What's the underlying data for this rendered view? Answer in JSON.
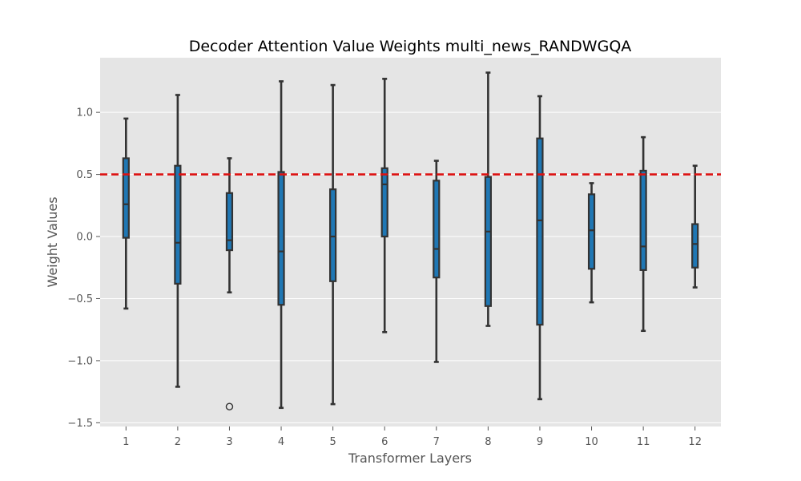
{
  "chart_data": {
    "type": "box",
    "title": "Decoder Attention Value Weights multi_news_RANDWGQA",
    "xlabel": "Transformer Layers",
    "ylabel": "Weight Values",
    "categories": [
      "1",
      "2",
      "3",
      "4",
      "5",
      "6",
      "7",
      "8",
      "9",
      "10",
      "11",
      "12"
    ],
    "ylim": [
      -1.53,
      1.44
    ],
    "yticks": [
      -1.5,
      -1.0,
      -0.5,
      0.0,
      0.5,
      1.0
    ],
    "ytick_labels": [
      "−1.5",
      "−1.0",
      "−0.5",
      "0.0",
      "0.5",
      "1.0"
    ],
    "grid": true,
    "background": "#e5e5e5",
    "box_color": "#1f77b4",
    "edge_color": "#333333",
    "reference_line": {
      "y": 0.5,
      "color": "#dd1111",
      "style": "dashed"
    },
    "boxes": [
      {
        "layer": "1",
        "whislo": -0.58,
        "q1": -0.01,
        "med": 0.26,
        "q3": 0.63,
        "whishi": 0.95,
        "fliers": []
      },
      {
        "layer": "2",
        "whislo": -1.21,
        "q1": -0.38,
        "med": -0.05,
        "q3": 0.57,
        "whishi": 1.14,
        "fliers": []
      },
      {
        "layer": "3",
        "whislo": -0.45,
        "q1": -0.11,
        "med": -0.03,
        "q3": 0.35,
        "whishi": 0.63,
        "fliers": [
          -1.37
        ]
      },
      {
        "layer": "4",
        "whislo": -1.38,
        "q1": -0.55,
        "med": -0.12,
        "q3": 0.52,
        "whishi": 1.25,
        "fliers": []
      },
      {
        "layer": "5",
        "whislo": -1.35,
        "q1": -0.36,
        "med": 0.0,
        "q3": 0.38,
        "whishi": 1.22,
        "fliers": []
      },
      {
        "layer": "6",
        "whislo": -0.77,
        "q1": 0.0,
        "med": 0.42,
        "q3": 0.55,
        "whishi": 1.27,
        "fliers": []
      },
      {
        "layer": "7",
        "whislo": -1.01,
        "q1": -0.33,
        "med": -0.1,
        "q3": 0.45,
        "whishi": 0.61,
        "fliers": []
      },
      {
        "layer": "8",
        "whislo": -0.72,
        "q1": -0.56,
        "med": 0.04,
        "q3": 0.48,
        "whishi": 1.32,
        "fliers": []
      },
      {
        "layer": "9",
        "whislo": -1.31,
        "q1": -0.71,
        "med": 0.13,
        "q3": 0.79,
        "whishi": 1.13,
        "fliers": []
      },
      {
        "layer": "10",
        "whislo": -0.53,
        "q1": -0.26,
        "med": 0.05,
        "q3": 0.34,
        "whishi": 0.43,
        "fliers": []
      },
      {
        "layer": "11",
        "whislo": -0.76,
        "q1": -0.27,
        "med": -0.08,
        "q3": 0.53,
        "whishi": 0.8,
        "fliers": []
      },
      {
        "layer": "12",
        "whislo": -0.41,
        "q1": -0.25,
        "med": -0.06,
        "q3": 0.1,
        "whishi": 0.57,
        "fliers": []
      }
    ]
  }
}
